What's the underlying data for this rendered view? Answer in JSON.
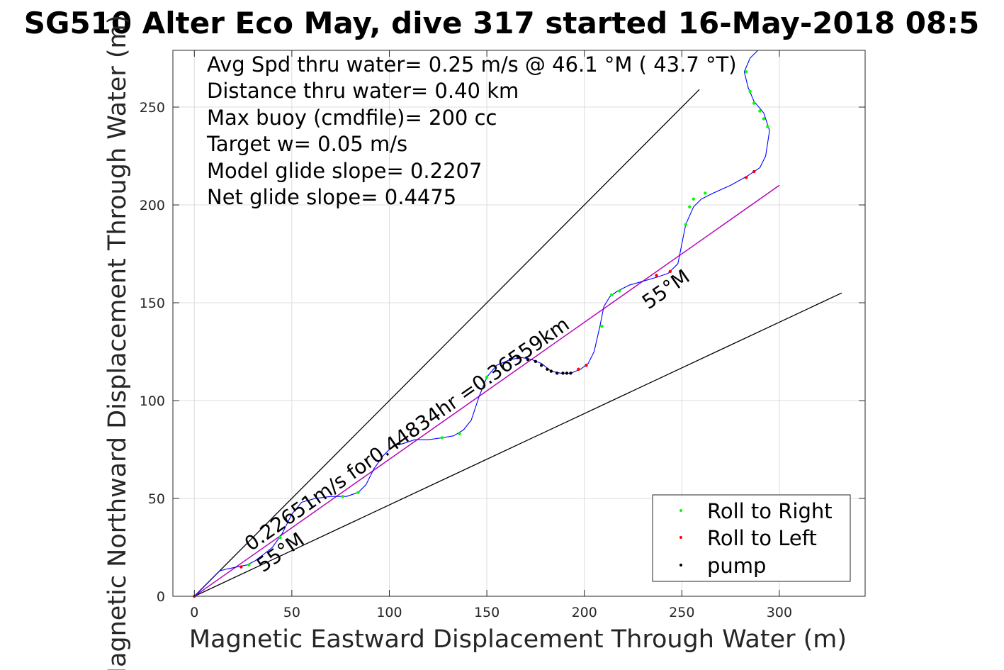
{
  "title": "SG510 Alter Eco May, dive 317 started 16-May-2018 08:5",
  "stats": [
    "Avg Spd thru water=  0.25 m/s @  46.1 °M ( 43.7 °T)",
    "Distance thru water=  0.40 km",
    "Max buoy (cmdfile)= 200 cc",
    "Target w= 0.05 m/s",
    "Model glide slope= 0.2207",
    "Net glide slope= 0.4475"
  ],
  "annotations": {
    "speed_line": "0.22651m/s for0.44834hr =0.36559km",
    "angle_lower": "55°M",
    "angle_upper": "55°M"
  },
  "colors": {
    "track": "#0000ff",
    "roll_right": "#00ff00",
    "roll_left": "#ff0000",
    "pump": "#000000",
    "heading_line": "#cc00cc",
    "cone_lines": "#000000"
  },
  "chart_data": {
    "type": "line",
    "title": "SG510 Alter Eco May, dive 317 started 16-May-2018 08:5",
    "xlabel": "Magnetic Eastward Displacement Through Water (m)",
    "ylabel": "Magnetic Northward Displacement Through Water (m)",
    "xlim": [
      -11,
      344
    ],
    "ylim": [
      0,
      279
    ],
    "xticks": [
      0,
      50,
      100,
      150,
      200,
      250,
      300
    ],
    "yticks": [
      0,
      50,
      100,
      150,
      200,
      250
    ],
    "grid": true,
    "legend_position": "bottom-right",
    "legend": [
      "Roll to Right",
      "Roll to Left",
      "pump"
    ],
    "track": [
      [
        0,
        0
      ],
      [
        5,
        5
      ],
      [
        10,
        10
      ],
      [
        13,
        13
      ],
      [
        17,
        14
      ],
      [
        22,
        15
      ],
      [
        27,
        16
      ],
      [
        31,
        18
      ],
      [
        35,
        21
      ],
      [
        40,
        25
      ],
      [
        45,
        32
      ],
      [
        50,
        42
      ],
      [
        55,
        48
      ],
      [
        62,
        50
      ],
      [
        70,
        51
      ],
      [
        78,
        51
      ],
      [
        84,
        53
      ],
      [
        88,
        57
      ],
      [
        92,
        65
      ],
      [
        97,
        72
      ],
      [
        102,
        77
      ],
      [
        107,
        78
      ],
      [
        113,
        80
      ],
      [
        120,
        80
      ],
      [
        127,
        81
      ],
      [
        133,
        82
      ],
      [
        138,
        85
      ],
      [
        142,
        90
      ],
      [
        146,
        102
      ],
      [
        150,
        112
      ],
      [
        155,
        118
      ],
      [
        162,
        121
      ],
      [
        168,
        122
      ],
      [
        173,
        121
      ],
      [
        178,
        119
      ],
      [
        183,
        115
      ],
      [
        188,
        114
      ],
      [
        193,
        114
      ],
      [
        198,
        116
      ],
      [
        202,
        119
      ],
      [
        205,
        125
      ],
      [
        208,
        138
      ],
      [
        210,
        148
      ],
      [
        213,
        153
      ],
      [
        217,
        156
      ],
      [
        223,
        159
      ],
      [
        230,
        161
      ],
      [
        237,
        163
      ],
      [
        243,
        165
      ],
      [
        248,
        170
      ],
      [
        250,
        180
      ],
      [
        252,
        190
      ],
      [
        256,
        199
      ],
      [
        260,
        203
      ],
      [
        266,
        206
      ],
      [
        275,
        210
      ],
      [
        284,
        215
      ],
      [
        290,
        219
      ],
      [
        293,
        225
      ],
      [
        295,
        238
      ],
      [
        292,
        247
      ],
      [
        287,
        253
      ],
      [
        284,
        260
      ],
      [
        282,
        268
      ],
      [
        285,
        275
      ],
      [
        289,
        279
      ]
    ],
    "roll_right_points": [
      [
        28,
        16
      ],
      [
        44,
        30
      ],
      [
        76,
        51
      ],
      [
        84,
        53
      ],
      [
        127,
        81
      ],
      [
        136,
        83
      ],
      [
        150,
        112
      ],
      [
        209,
        138
      ],
      [
        214,
        154
      ],
      [
        218,
        156
      ],
      [
        252,
        190
      ],
      [
        254,
        199
      ],
      [
        256,
        203
      ],
      [
        262,
        206
      ],
      [
        283,
        268
      ],
      [
        285,
        258
      ],
      [
        287,
        252
      ],
      [
        290,
        248
      ],
      [
        292,
        244
      ],
      [
        294,
        240
      ]
    ],
    "roll_left_points": [
      [
        0,
        0
      ],
      [
        24,
        15
      ],
      [
        197,
        116
      ],
      [
        201,
        118
      ],
      [
        237,
        164
      ],
      [
        244,
        166
      ],
      [
        283,
        214
      ],
      [
        287,
        217
      ]
    ],
    "pump_points": [
      [
        105,
        78
      ],
      [
        162,
        121
      ],
      [
        166,
        122
      ],
      [
        171,
        121
      ],
      [
        175,
        120
      ],
      [
        178,
        118
      ],
      [
        181,
        116
      ],
      [
        183,
        115
      ],
      [
        186,
        114
      ],
      [
        189,
        114
      ],
      [
        191,
        114
      ],
      [
        193,
        114
      ]
    ],
    "heading_line": {
      "name": "46.1 °M",
      "x": [
        0,
        300
      ],
      "y": [
        0,
        210
      ]
    },
    "cone_lines": [
      {
        "x": [
          0,
          259
        ],
        "y": [
          0,
          259
        ]
      },
      {
        "x": [
          0,
          332
        ],
        "y": [
          0,
          155
        ]
      },
      {
        "x": [
          0,
          300
        ],
        "y": [
          0,
          210
        ]
      }
    ]
  }
}
